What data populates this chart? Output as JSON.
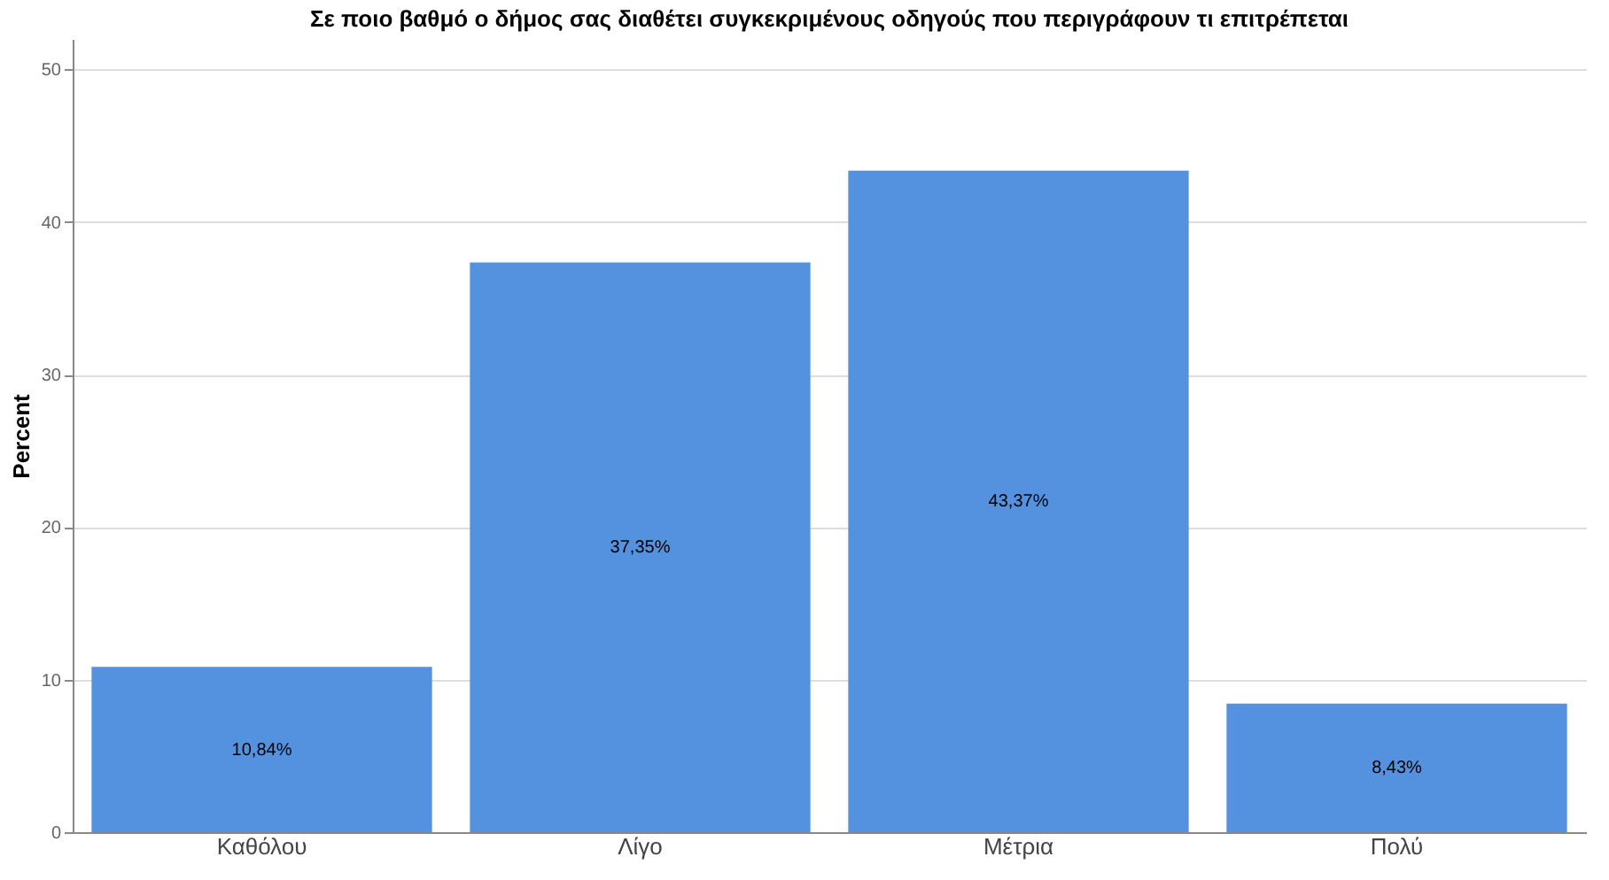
{
  "chart_data": {
    "type": "bar",
    "title": "Σε ποιο βαθμό ο δήμος σας διαθέτει συγκεκριμένους οδηγούς που περιγράφουν τι επιτρέπεται",
    "ylabel": "Percent",
    "categories": [
      "Καθόλου",
      "Λίγο",
      "Μέτρια",
      "Πολύ"
    ],
    "values": [
      10.84,
      37.35,
      43.37,
      8.43
    ],
    "value_labels": [
      "10,84%",
      "37,35%",
      "43,37%",
      "8,43%"
    ],
    "color": "#5491de",
    "ylim": [
      0,
      52
    ],
    "yticks": [
      0,
      10,
      20,
      30,
      40,
      50
    ],
    "grid": "y"
  }
}
